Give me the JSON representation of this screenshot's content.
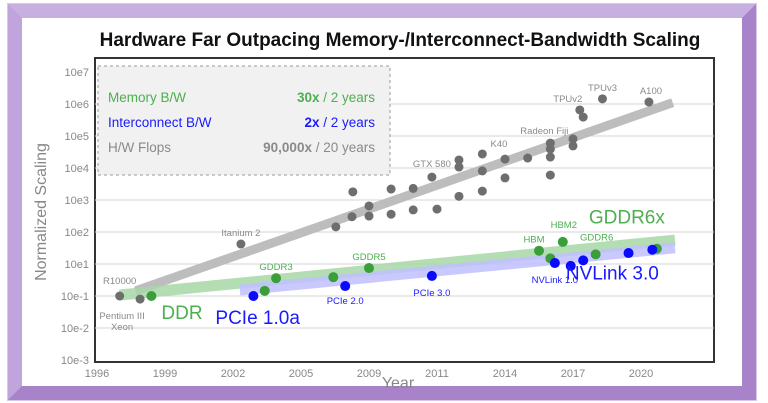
{
  "chart_data": {
    "type": "scatter",
    "title": "Hardware Far Outpacing Memory-/Interconnect-Bandwidth Scaling",
    "xlabel": "Year",
    "ylabel": "Normalized Scaling",
    "x_ticks": [
      1996,
      1999,
      2002,
      2005,
      2009,
      2011,
      2014,
      2017,
      2020
    ],
    "x_tick_labels": [
      "1996",
      "1999",
      "2002",
      "2005",
      "2009",
      "2011",
      "2014",
      "2017",
      "2020"
    ],
    "y_tick_exponents": [
      7,
      6,
      5,
      4,
      3,
      2,
      1,
      -1,
      -2,
      -3
    ],
    "y_tick_labels": [
      "10e7",
      "10e6",
      "10e5",
      "10e4",
      "10e3",
      "10e2",
      "10e1",
      "10e-1",
      "10e-2",
      "10e-3"
    ],
    "y_scale": "log",
    "grid": true,
    "legend": {
      "placement": "top-left",
      "entries": [
        {
          "name": "Memory B/W",
          "rate_bold": "30x",
          "rate_rest": " / 2 years",
          "color": "#4caf50"
        },
        {
          "name": "Interconnect B/W",
          "rate_bold": "2x",
          "rate_rest": " / 2 years",
          "color": "#1a1aff"
        },
        {
          "name": "H/W Flops",
          "rate_bold": "90,000x",
          "rate_rest": " / 20 years",
          "color": "#8a8a8a"
        }
      ]
    },
    "series": [
      {
        "name": "H/W Flops",
        "color": "#6e6e6e",
        "trend_color": "#bdbdbd",
        "trend": [
          [
            1997.7,
            0.21
          ],
          [
            2021.4,
            1100000
          ]
        ],
        "points": [
          {
            "x": 1997.0,
            "y": 0.1,
            "label": "R10000"
          },
          {
            "x": 1997.9,
            "y": 0.08,
            "label": "Pentium III Xeon"
          },
          {
            "x": 2002.35,
            "y": 42,
            "label": "Itanium 2"
          },
          {
            "x": 2007.05,
            "y": 145
          },
          {
            "x": 2008.0,
            "y": 300
          },
          {
            "x": 2008.05,
            "y": 1800
          },
          {
            "x": 2009.0,
            "y": 650
          },
          {
            "x": 2009.0,
            "y": 316
          },
          {
            "x": 2009.65,
            "y": 360
          },
          {
            "x": 2009.65,
            "y": 2200
          },
          {
            "x": 2010.3,
            "y": 2300
          },
          {
            "x": 2010.3,
            "y": 490
          },
          {
            "x": 2010.85,
            "y": 5200,
            "label": "GTX 580"
          },
          {
            "x": 2011.0,
            "y": 520
          },
          {
            "x": 2011.97,
            "y": 17800
          },
          {
            "x": 2011.97,
            "y": 10700
          },
          {
            "x": 2011.97,
            "y": 1300
          },
          {
            "x": 2013.0,
            "y": 27500
          },
          {
            "x": 2013.0,
            "y": 8100
          },
          {
            "x": 2013.0,
            "y": 1900
          },
          {
            "x": 2014.0,
            "y": 19000,
            "label": "K40"
          },
          {
            "x": 2014.0,
            "y": 4900
          },
          {
            "x": 2015.0,
            "y": 20500
          },
          {
            "x": 2016.0,
            "y": 60000,
            "label": "Radeon Fiji"
          },
          {
            "x": 2016.0,
            "y": 39000
          },
          {
            "x": 2016.0,
            "y": 22000
          },
          {
            "x": 2016.0,
            "y": 6000
          },
          {
            "x": 2017.0,
            "y": 81000
          },
          {
            "x": 2017.0,
            "y": 49000
          },
          {
            "x": 2017.3,
            "y": 650000,
            "label": "TPUv2"
          },
          {
            "x": 2017.45,
            "y": 390000
          },
          {
            "x": 2018.3,
            "y": 1450000,
            "label": "TPUv3"
          },
          {
            "x": 2020.35,
            "y": 1150000,
            "label": "A100"
          }
        ]
      },
      {
        "name": "Memory B/W",
        "color": "#3a9e3a",
        "trend_color": "#a8d8a8",
        "trend": [
          [
            1997.0,
            0.115
          ],
          [
            2021.5,
            56
          ]
        ],
        "points": [
          {
            "x": 1998.4,
            "y": 0.1,
            "label": "DDR",
            "big": true
          },
          {
            "x": 2003.4,
            "y": 0.21
          },
          {
            "x": 2003.9,
            "y": 1.3,
            "label": "GDDR3"
          },
          {
            "x": 2006.9,
            "y": 1.5
          },
          {
            "x": 2009.0,
            "y": 5.6,
            "label": "GDDR5"
          },
          {
            "x": 2015.5,
            "y": 26,
            "label": "HBM"
          },
          {
            "x": 2016.0,
            "y": 15
          },
          {
            "x": 2016.55,
            "y": 49,
            "label": "HBM2"
          },
          {
            "x": 2018.0,
            "y": 20,
            "label": "GDDR6"
          },
          {
            "x": 2020.7,
            "y": 30,
            "label": "GDDR6x",
            "big": true
          }
        ]
      },
      {
        "name": "Interconnect B/W",
        "color": "#0a0aff",
        "trend_color": "#c0c0ff",
        "trend": [
          [
            2002.3,
            0.24
          ],
          [
            2021.5,
            32
          ]
        ],
        "points": [
          {
            "x": 2002.9,
            "y": 0.1,
            "label": "PCIe 1.0a",
            "big": true
          },
          {
            "x": 2007.6,
            "y": 0.42,
            "label": "PCIe 2.0"
          },
          {
            "x": 2010.85,
            "y": 1.8,
            "label": "PCIe 3.0"
          },
          {
            "x": 2016.2,
            "y": 10.7,
            "label": "NVLink 1.0"
          },
          {
            "x": 2016.9,
            "y": 7.6
          },
          {
            "x": 2017.45,
            "y": 13
          },
          {
            "x": 2019.45,
            "y": 22
          },
          {
            "x": 2020.5,
            "y": 28,
            "label": "NVLink 3.0",
            "big": true
          }
        ]
      }
    ]
  }
}
